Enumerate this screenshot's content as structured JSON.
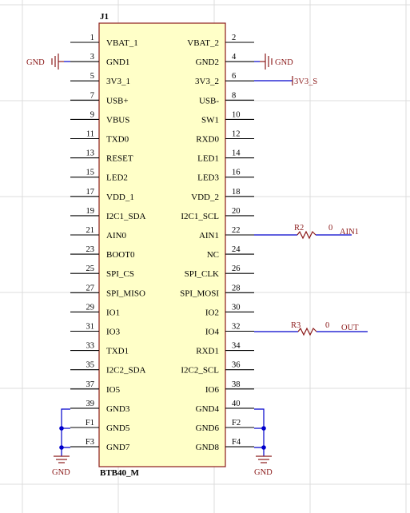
{
  "component": {
    "designator": "J1",
    "part_name": "BTB40_M",
    "colors": {
      "body_fill": "#ffffc8",
      "body_stroke": "#8b1a1a",
      "wire": "#0000cc",
      "power": "#8b1a1a",
      "grid": "#d9d9d9"
    }
  },
  "left_pins": [
    {
      "num": "1",
      "name": "VBAT_1"
    },
    {
      "num": "3",
      "name": "GND1"
    },
    {
      "num": "5",
      "name": "3V3_1"
    },
    {
      "num": "7",
      "name": "USB+"
    },
    {
      "num": "9",
      "name": "VBUS"
    },
    {
      "num": "11",
      "name": "TXD0"
    },
    {
      "num": "13",
      "name": "RESET"
    },
    {
      "num": "15",
      "name": "LED2"
    },
    {
      "num": "17",
      "name": "VDD_1"
    },
    {
      "num": "19",
      "name": "I2C1_SDA"
    },
    {
      "num": "21",
      "name": "AIN0"
    },
    {
      "num": "23",
      "name": "BOOT0"
    },
    {
      "num": "25",
      "name": "SPI_CS"
    },
    {
      "num": "27",
      "name": "SPI_MISO"
    },
    {
      "num": "29",
      "name": "IO1"
    },
    {
      "num": "31",
      "name": "IO3"
    },
    {
      "num": "33",
      "name": "TXD1"
    },
    {
      "num": "35",
      "name": "I2C2_SDA"
    },
    {
      "num": "37",
      "name": "IO5"
    },
    {
      "num": "39",
      "name": "GND3"
    },
    {
      "num": "F1",
      "name": "GND5"
    },
    {
      "num": "F3",
      "name": "GND7"
    }
  ],
  "right_pins": [
    {
      "num": "2",
      "name": "VBAT_2"
    },
    {
      "num": "4",
      "name": "GND2"
    },
    {
      "num": "6",
      "name": "3V3_2"
    },
    {
      "num": "8",
      "name": "USB-"
    },
    {
      "num": "10",
      "name": "SW1"
    },
    {
      "num": "12",
      "name": "RXD0"
    },
    {
      "num": "14",
      "name": "LED1"
    },
    {
      "num": "16",
      "name": "LED3"
    },
    {
      "num": "18",
      "name": "VDD_2"
    },
    {
      "num": "20",
      "name": "I2C1_SCL"
    },
    {
      "num": "22",
      "name": "AIN1"
    },
    {
      "num": "24",
      "name": "NC"
    },
    {
      "num": "26",
      "name": "SPI_CLK"
    },
    {
      "num": "28",
      "name": "SPI_MOSI"
    },
    {
      "num": "30",
      "name": "IO2"
    },
    {
      "num": "32",
      "name": "IO4"
    },
    {
      "num": "34",
      "name": "RXD1"
    },
    {
      "num": "36",
      "name": "I2C2_SCL"
    },
    {
      "num": "38",
      "name": "IO6"
    },
    {
      "num": "40",
      "name": "GND4"
    },
    {
      "num": "F2",
      "name": "GND6"
    },
    {
      "num": "F4",
      "name": "GND8"
    }
  ],
  "nets": {
    "gnd_left_label": "GND",
    "gnd_right_label": "GND",
    "v3v3_label": "3V3_S",
    "gnd_bottom_left": "GND",
    "gnd_bottom_right": "GND",
    "ain1_label": "AIN1",
    "out_label": "OUT"
  },
  "resistors": {
    "r2": {
      "designator": "R2",
      "value": "0"
    },
    "r3": {
      "designator": "R3",
      "value": "0"
    }
  }
}
